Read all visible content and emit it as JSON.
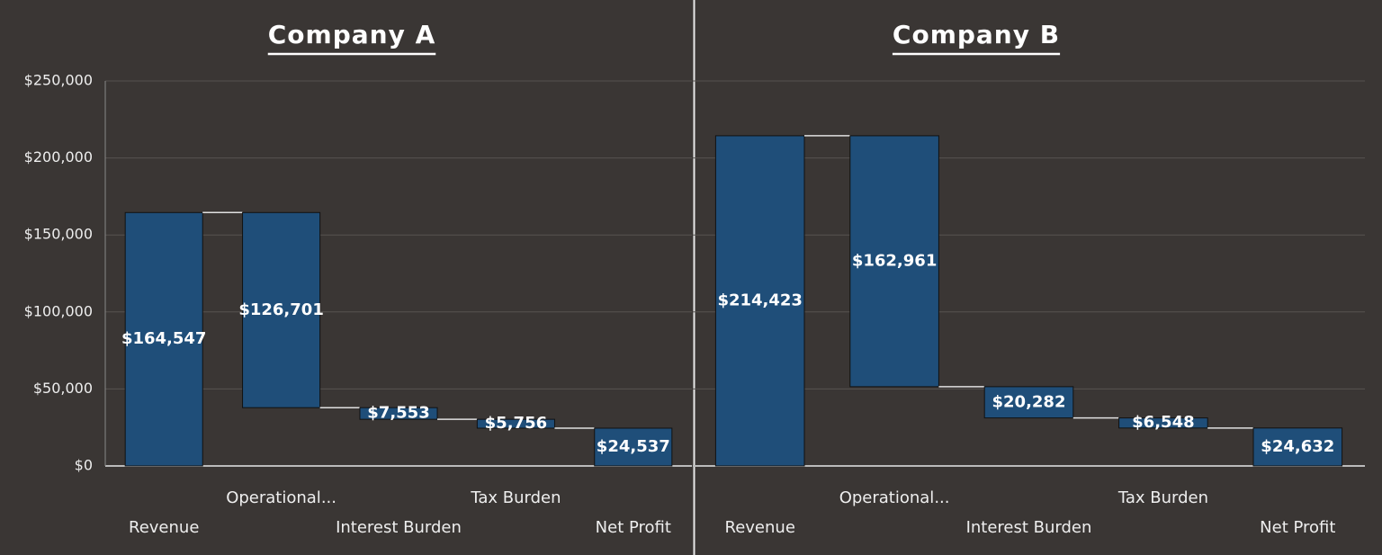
{
  "chart_data": [
    {
      "type": "waterfall",
      "title": "Company A",
      "categories": [
        "Revenue",
        "Operational...",
        "Interest Burden",
        "Tax Burden",
        "Net Profit"
      ],
      "measures": [
        "absolute",
        "decrease",
        "decrease",
        "decrease",
        "total"
      ],
      "values": [
        164547,
        126701,
        7553,
        5756,
        24537
      ],
      "value_labels": [
        "$164,547",
        "$126,701",
        "$7,553",
        "$5,756",
        "$24,537"
      ],
      "color": "#1f4e79",
      "ylim": [
        0,
        250000
      ],
      "yticks": [
        {
          "value": 0,
          "label": "$0"
        },
        {
          "value": 50000,
          "label": "$50,000"
        },
        {
          "value": 100000,
          "label": "$100,000"
        },
        {
          "value": 150000,
          "label": "$150,000"
        },
        {
          "value": 200000,
          "label": "$200,000"
        },
        {
          "value": 250000,
          "label": "$250,000"
        }
      ],
      "tick_labels": true,
      "grid": true
    },
    {
      "type": "waterfall",
      "title": "Company B",
      "categories": [
        "Revenue",
        "Operational...",
        "Interest Burden",
        "Tax Burden",
        "Net Profit"
      ],
      "measures": [
        "absolute",
        "decrease",
        "decrease",
        "decrease",
        "total"
      ],
      "values": [
        214423,
        162961,
        20282,
        6548,
        24632
      ],
      "value_labels": [
        "$214,423",
        "$162,961",
        "$20,282",
        "$6,548",
        "$24,632"
      ],
      "color": "#1f4e79",
      "ylim": [
        0,
        250000
      ],
      "yticks": [
        0,
        50000,
        100000,
        150000,
        200000,
        250000
      ],
      "tick_labels": false,
      "grid": true
    }
  ]
}
